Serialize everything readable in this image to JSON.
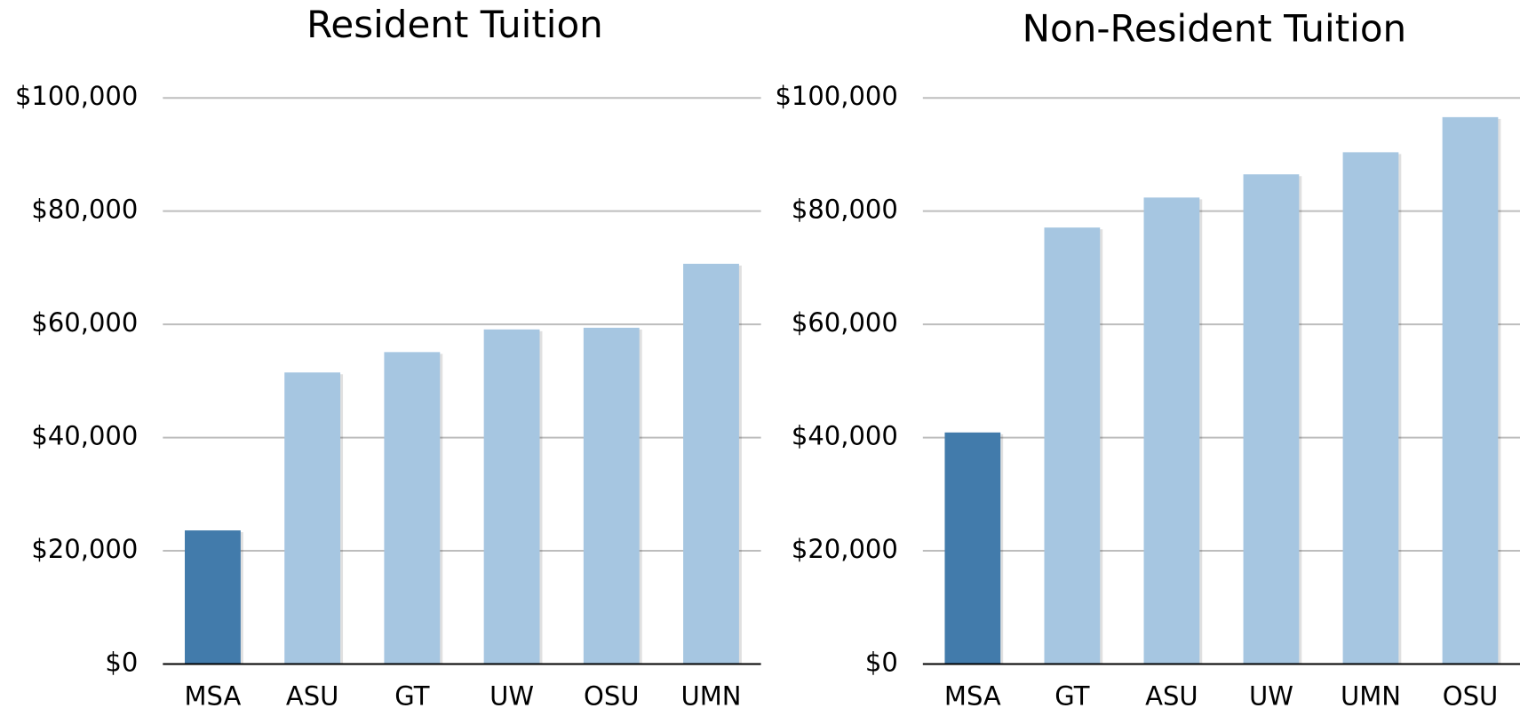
{
  "chart_data": [
    {
      "type": "bar",
      "title": "Resident Tuition",
      "categories": [
        "MSA",
        "ASU",
        "GT",
        "UW",
        "OSU",
        "UMN"
      ],
      "values": [
        23600,
        51500,
        55100,
        59100,
        59400,
        70700
      ],
      "colors": [
        "#427bab",
        "#a6c6e1",
        "#a6c6e1",
        "#a6c6e1",
        "#a6c6e1",
        "#a6c6e1"
      ],
      "ylim": [
        0,
        100000
      ],
      "yticks": [
        {
          "value": 0,
          "label": "$0"
        },
        {
          "value": 20000,
          "label": "$20,000"
        },
        {
          "value": 40000,
          "label": "$40,000"
        },
        {
          "value": 60000,
          "label": "$60,000"
        },
        {
          "value": 80000,
          "label": "$80,000"
        },
        {
          "value": 100000,
          "label": "$100,000"
        }
      ],
      "grid": true
    },
    {
      "type": "bar",
      "title": "Non-Resident Tuition",
      "categories": [
        "MSA",
        "GT",
        "ASU",
        "UW",
        "UMN",
        "OSU"
      ],
      "values": [
        40900,
        77100,
        82400,
        86500,
        90400,
        96600
      ],
      "colors": [
        "#427bab",
        "#a6c6e1",
        "#a6c6e1",
        "#a6c6e1",
        "#a6c6e1",
        "#a6c6e1"
      ],
      "ylim": [
        0,
        100000
      ],
      "yticks": [
        {
          "value": 0,
          "label": "$0"
        },
        {
          "value": 20000,
          "label": "$20,000"
        },
        {
          "value": 40000,
          "label": "$40,000"
        },
        {
          "value": 60000,
          "label": "$60,000"
        },
        {
          "value": 80000,
          "label": "$80,000"
        },
        {
          "value": 100000,
          "label": "$100,000"
        }
      ],
      "grid": true
    }
  ]
}
